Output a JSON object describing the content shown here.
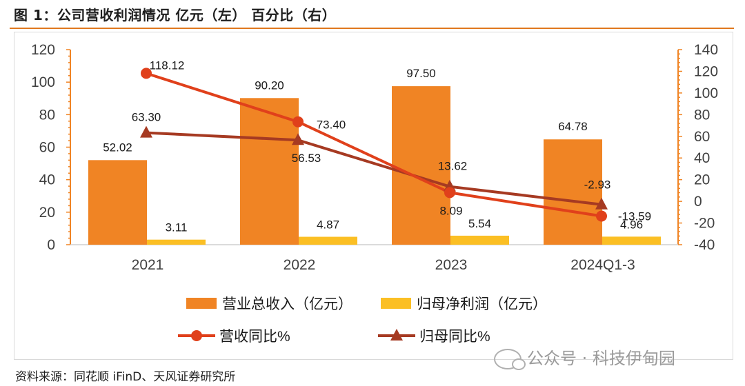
{
  "figure": {
    "title": "图 1：公司营收利润情况   亿元（左）  百分比（右）",
    "source": "资料来源：同花顺 iFinD、天风证券研究所",
    "watermark": "公众号 · 科技伊甸园"
  },
  "chart_data": {
    "type": "bar",
    "categories": [
      "2021",
      "2022",
      "2023",
      "2024Q1-3"
    ],
    "y_left": {
      "range": [
        0,
        120
      ],
      "ticks": [
        0,
        20,
        40,
        60,
        80,
        100,
        120
      ]
    },
    "y_right": {
      "range": [
        -40,
        140
      ],
      "ticks": [
        -40,
        -20,
        0,
        20,
        40,
        60,
        80,
        100,
        120,
        140
      ]
    },
    "grid": false,
    "legend_position": "bottom",
    "series": [
      {
        "name": "营业总收入（亿元）",
        "type": "bar",
        "axis": "left",
        "color": "#f08424",
        "values": [
          52.02,
          90.2,
          97.5,
          64.78
        ],
        "labels": [
          "52.02",
          "90.20",
          "97.50",
          "64.78"
        ]
      },
      {
        "name": "归母净利润（亿元）",
        "type": "bar",
        "axis": "left",
        "color": "#fbbf24",
        "values": [
          3.11,
          4.87,
          5.54,
          4.96
        ],
        "labels": [
          "3.11",
          "4.87",
          "5.54",
          "4.96"
        ]
      },
      {
        "name": "营收同比%",
        "type": "line",
        "marker": "circle",
        "axis": "right",
        "color": "#e0401b",
        "values": [
          118.12,
          73.4,
          8.09,
          -13.59
        ],
        "labels": [
          "118.12",
          "73.40",
          "8.09",
          "-13.59"
        ]
      },
      {
        "name": "归母同比%",
        "type": "line",
        "marker": "triangle",
        "axis": "right",
        "color": "#a63a22",
        "values": [
          63.3,
          56.53,
          13.62,
          -2.93
        ],
        "labels": [
          "63.30",
          "56.53",
          "13.62",
          "-2.93"
        ]
      }
    ]
  }
}
